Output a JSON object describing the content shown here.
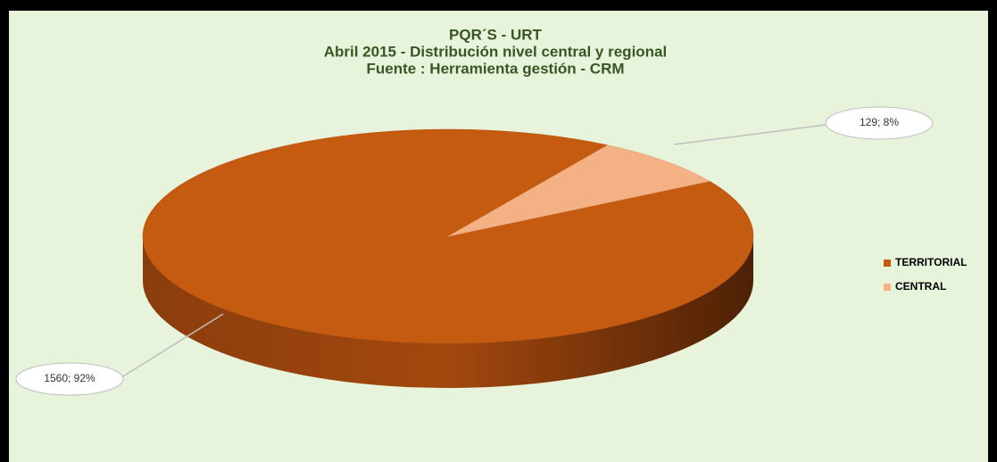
{
  "chart_data": {
    "type": "pie",
    "title": [
      "PQR´S - URT",
      "Abril 2015 -  Distribución nivel central y regional",
      "Fuente : Herramienta gestión - CRM"
    ],
    "categories": [
      "TERRITORIAL",
      "CENTRAL"
    ],
    "values": [
      1560,
      129
    ],
    "value_labels": [
      "1560; 92%",
      "129; 8%"
    ],
    "colors": [
      "#c55a11",
      "#f4b183"
    ],
    "legend": "right"
  }
}
